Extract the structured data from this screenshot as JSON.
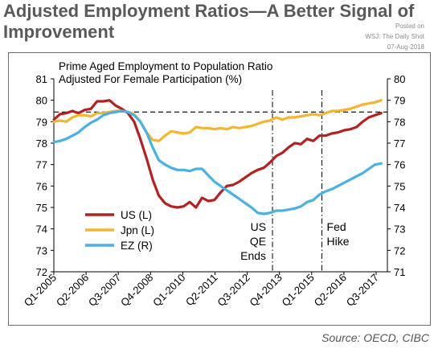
{
  "header": {
    "title_line1": "Adjusted Employment Ratios—A Better Signal of",
    "title_line2": "Improvement"
  },
  "watermark": {
    "line1": "Posted on",
    "line2": "WSJ: The Daily Shot",
    "line3": "07-Aug-2018"
  },
  "source": "Source: OECD, CIBC",
  "chart_data": {
    "type": "line",
    "title_line1": "Prime Aged Employment to Population Ratio",
    "title_line2": "Adjusted For Female Participation (%)",
    "x_tick_labels": [
      "Q1-2005",
      "Q2-2006",
      "Q3-2007",
      "Q4-2008",
      "Q1-2010",
      "Q2-2011",
      "Q3-2012",
      "Q4-2013",
      "Q1-2015",
      "Q2-2016",
      "Q3-2017"
    ],
    "x_range": [
      2005.0,
      2018.5
    ],
    "y_left": {
      "min": 72,
      "max": 81,
      "ticks": [
        "72",
        "73",
        "74",
        "75",
        "76",
        "77",
        "78",
        "79",
        "80",
        "81"
      ]
    },
    "y_right": {
      "min": 71,
      "max": 80,
      "ticks": [
        "71",
        "72",
        "73",
        "74",
        "75",
        "76",
        "77",
        "78",
        "79",
        "80"
      ]
    },
    "reference_line": {
      "axis": "left",
      "value": 79.45,
      "style": "dashed"
    },
    "event_lines": [
      {
        "x": 2013.85,
        "label": [
          "US",
          "QE",
          "Ends"
        ]
      },
      {
        "x": 2015.85,
        "label": [
          "Fed",
          "Hike"
        ]
      }
    ],
    "series": [
      {
        "name": "US (L)",
        "axis": "left",
        "color": "#b22222",
        "x": [
          2005.0,
          2005.25,
          2005.5,
          2005.75,
          2006.0,
          2006.25,
          2006.5,
          2006.75,
          2007.0,
          2007.25,
          2007.5,
          2007.75,
          2008.0,
          2008.25,
          2008.5,
          2008.75,
          2009.0,
          2009.25,
          2009.5,
          2009.75,
          2010.0,
          2010.25,
          2010.5,
          2010.75,
          2011.0,
          2011.25,
          2011.5,
          2011.75,
          2012.0,
          2012.25,
          2012.5,
          2012.75,
          2013.0,
          2013.25,
          2013.5,
          2013.75,
          2014.0,
          2014.25,
          2014.5,
          2014.75,
          2015.0,
          2015.25,
          2015.5,
          2015.75,
          2016.0,
          2016.25,
          2016.5,
          2016.75,
          2017.0,
          2017.25,
          2017.5,
          2017.75,
          2018.0,
          2018.25
        ],
        "values": [
          79.1,
          79.35,
          79.4,
          79.5,
          79.4,
          79.55,
          79.6,
          79.95,
          79.95,
          80.0,
          79.75,
          79.6,
          79.4,
          79.0,
          78.2,
          77.3,
          76.3,
          75.55,
          75.2,
          75.05,
          75.0,
          75.05,
          75.25,
          75.0,
          75.45,
          75.3,
          75.35,
          75.7,
          76.0,
          76.05,
          76.2,
          76.4,
          76.6,
          76.75,
          76.85,
          77.1,
          77.4,
          77.55,
          77.8,
          78.0,
          77.95,
          78.2,
          78.1,
          78.35,
          78.35,
          78.45,
          78.5,
          78.6,
          78.65,
          78.75,
          79.0,
          79.2,
          79.3,
          79.4
        ]
      },
      {
        "name": "Jpn (L)",
        "axis": "left",
        "color": "#f2b632",
        "x": [
          2005.0,
          2005.25,
          2005.5,
          2005.75,
          2006.0,
          2006.25,
          2006.5,
          2006.75,
          2007.0,
          2007.25,
          2007.5,
          2007.75,
          2008.0,
          2008.25,
          2008.5,
          2008.75,
          2009.0,
          2009.25,
          2009.5,
          2009.75,
          2010.0,
          2010.25,
          2010.5,
          2010.75,
          2011.0,
          2011.25,
          2011.5,
          2011.75,
          2012.0,
          2012.25,
          2012.5,
          2012.75,
          2013.0,
          2013.25,
          2013.5,
          2013.75,
          2014.0,
          2014.25,
          2014.5,
          2014.75,
          2015.0,
          2015.25,
          2015.5,
          2015.75,
          2016.0,
          2016.25,
          2016.5,
          2016.75,
          2017.0,
          2017.25,
          2017.5,
          2017.75,
          2018.0,
          2018.25
        ],
        "values": [
          79.0,
          79.05,
          79.0,
          79.2,
          79.3,
          79.3,
          79.25,
          79.4,
          79.4,
          79.45,
          79.5,
          79.5,
          79.45,
          79.35,
          79.0,
          78.5,
          78.15,
          78.1,
          78.35,
          78.55,
          78.5,
          78.45,
          78.5,
          78.75,
          78.7,
          78.7,
          78.65,
          78.7,
          78.65,
          78.75,
          78.7,
          78.75,
          78.8,
          78.9,
          79.0,
          79.05,
          79.2,
          79.1,
          79.2,
          79.2,
          79.25,
          79.3,
          79.35,
          79.3,
          79.4,
          79.5,
          79.5,
          79.55,
          79.6,
          79.7,
          79.8,
          79.85,
          79.9,
          80.0
        ]
      },
      {
        "name": "EZ (R)",
        "axis": "right",
        "color": "#4cb1e0",
        "x": [
          2005.0,
          2005.25,
          2005.5,
          2005.75,
          2006.0,
          2006.25,
          2006.5,
          2006.75,
          2007.0,
          2007.25,
          2007.5,
          2007.75,
          2008.0,
          2008.25,
          2008.5,
          2008.75,
          2009.0,
          2009.25,
          2009.5,
          2009.75,
          2010.0,
          2010.25,
          2010.5,
          2010.75,
          2011.0,
          2011.25,
          2011.5,
          2011.75,
          2012.0,
          2012.25,
          2012.5,
          2012.75,
          2013.0,
          2013.25,
          2013.5,
          2013.75,
          2014.0,
          2014.25,
          2014.5,
          2014.75,
          2015.0,
          2015.25,
          2015.5,
          2015.75,
          2016.0,
          2016.25,
          2016.5,
          2016.75,
          2017.0,
          2017.25,
          2017.5,
          2017.75,
          2018.0,
          2018.25
        ],
        "values": [
          77.05,
          77.1,
          77.2,
          77.35,
          77.5,
          77.75,
          77.95,
          78.1,
          78.3,
          78.4,
          78.45,
          78.5,
          78.45,
          78.3,
          78.0,
          77.5,
          76.8,
          76.2,
          76.0,
          75.85,
          75.75,
          75.75,
          75.7,
          75.8,
          75.8,
          75.5,
          75.2,
          75.0,
          74.8,
          74.6,
          74.4,
          74.2,
          74.0,
          73.75,
          73.7,
          73.75,
          73.85,
          73.85,
          73.9,
          73.95,
          74.05,
          74.25,
          74.35,
          74.6,
          74.75,
          74.85,
          75.0,
          75.15,
          75.3,
          75.45,
          75.6,
          75.8,
          76.0,
          76.05
        ]
      }
    ]
  }
}
